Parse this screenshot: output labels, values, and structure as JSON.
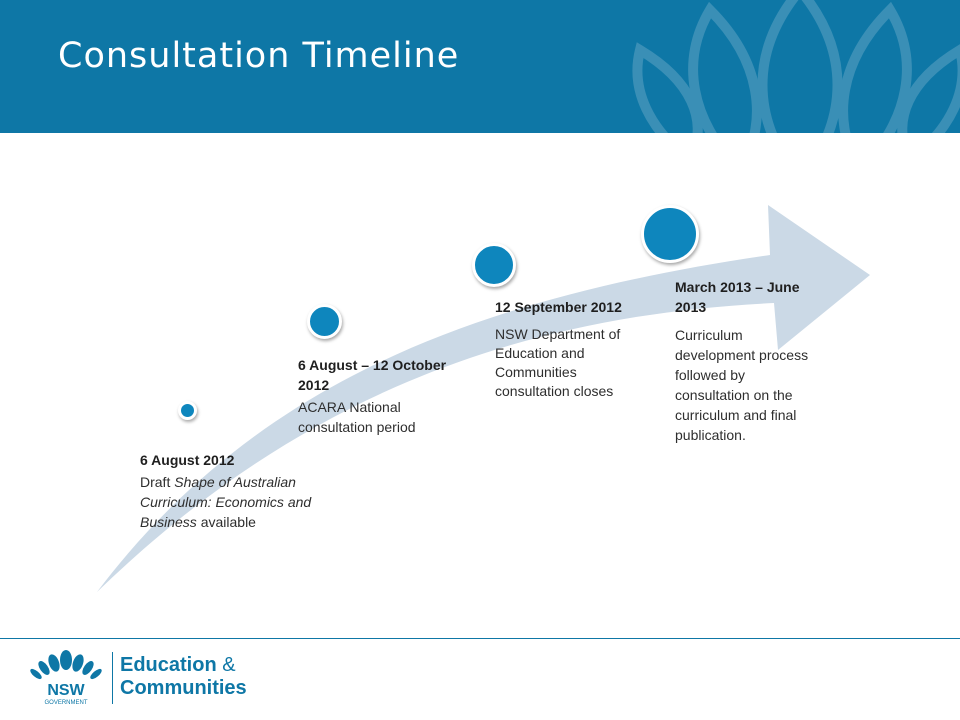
{
  "slide": {
    "title": "Consultation Timeline"
  },
  "milestones": [
    {
      "date": "6 August 2012",
      "desc_prefix": "Draft ",
      "desc_italic": "Shape of Australian Curriculum: Economics and Business",
      "desc_suffix": " available"
    },
    {
      "date": "6 August – 12 October 2012",
      "desc": "ACARA National consultation period"
    },
    {
      "date": "12 September 2012",
      "desc": "NSW Department of Education and Communities consultation closes"
    },
    {
      "date": "March 2013 – June 2013",
      "desc": "Curriculum development process followed by consultation on the curriculum and final publication."
    }
  ],
  "logo": {
    "line1": "Education",
    "amp": " &",
    "line2": "Communities",
    "mark_text": "NSW",
    "mark_sub": "GOVERNMENT"
  },
  "colors": {
    "header": "#0e77a6",
    "dot": "#0e86bd",
    "arrow": "#cbd9e6"
  }
}
